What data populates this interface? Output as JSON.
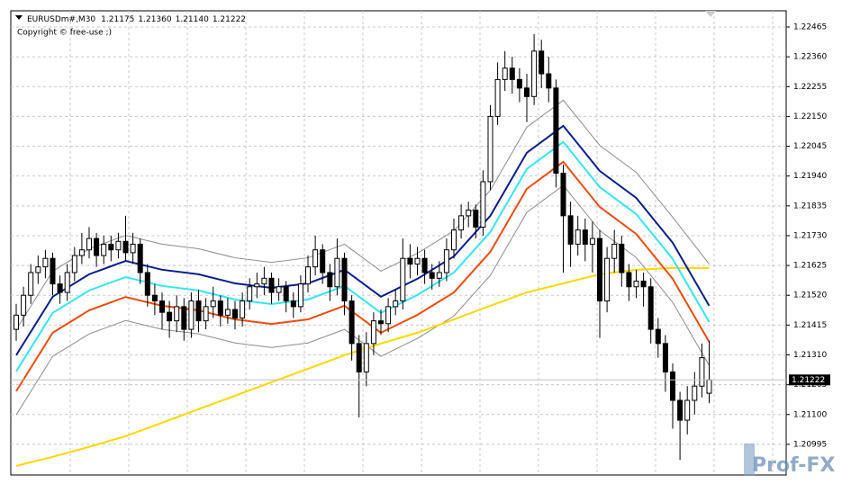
{
  "chart_data": {
    "type": "candlestick",
    "symbol": "EURUSDm#,M30",
    "ohlc_labels": [
      "1.21175",
      "1.21360",
      "1.21140",
      "1.21222"
    ],
    "copyright": "Copyright © free-use ;)",
    "watermark": "Prof-FX",
    "current_price": {
      "value": 1.21222,
      "label": "1.21222"
    },
    "ylim": [
      1.20887,
      1.22522
    ],
    "yticks": [
      {
        "value": 1.22465,
        "label": "1.22465"
      },
      {
        "value": 1.2236,
        "label": "1.22360"
      },
      {
        "value": 1.22255,
        "label": "1.22255"
      },
      {
        "value": 1.2215,
        "label": "1.22150"
      },
      {
        "value": 1.22045,
        "label": "1.22045"
      },
      {
        "value": 1.2194,
        "label": "1.21940"
      },
      {
        "value": 1.21835,
        "label": "1.21835"
      },
      {
        "value": 1.2173,
        "label": "1.21730"
      },
      {
        "value": 1.21625,
        "label": "1.21625"
      },
      {
        "value": 1.2152,
        "label": "1.21520"
      },
      {
        "value": 1.21415,
        "label": "1.21415"
      },
      {
        "value": 1.2131,
        "label": "1.21310"
      },
      {
        "value": 1.21205,
        "label": "1.21205"
      },
      {
        "value": 1.211,
        "label": "1.21100"
      },
      {
        "value": 1.20995,
        "label": "1.20995"
      }
    ],
    "grid": true,
    "bull_color": "#ffffff",
    "bear_color": "#000000",
    "open": [
      1.214,
      1.2145,
      1.2152,
      1.216,
      1.2162,
      1.2165,
      1.2156,
      1.2153,
      1.216,
      1.2166,
      1.2168,
      1.2172,
      1.2166,
      1.217,
      1.2168,
      1.2171,
      1.2167,
      1.217,
      1.216,
      1.2152,
      1.215,
      1.2146,
      1.2143,
      1.2148,
      1.214,
      1.215,
      1.2143,
      1.2148,
      1.215,
      1.2145,
      1.2147,
      1.2144,
      1.215,
      1.2155,
      1.2156,
      1.2158,
      1.2153,
      1.2155,
      1.215,
      1.2148,
      1.2156,
      1.2162,
      1.2168,
      1.216,
      1.2155,
      1.2165,
      1.215,
      1.2135,
      1.2125,
      1.2135,
      1.2143,
      1.2142,
      1.2148,
      1.215,
      1.2165,
      1.2163,
      1.2165,
      1.216,
      1.2158,
      1.216,
      1.2168,
      1.2175,
      1.218,
      1.2182,
      1.2176,
      1.2192,
      1.2215,
      1.2228,
      1.2232,
      1.2228,
      1.2225,
      1.2222,
      1.2238,
      1.223,
      1.2225,
      1.2195,
      1.218,
      1.217,
      1.2175,
      1.217,
      1.2172,
      1.215,
      1.2165,
      1.217,
      1.216,
      1.2155,
      1.2157,
      1.2155,
      1.214,
      1.2135,
      1.2125,
      1.2115,
      1.2108,
      1.2115,
      1.212,
      1.21175
    ],
    "high": [
      1.2149,
      1.2155,
      1.2163,
      1.2166,
      1.2168,
      1.2167,
      1.2159,
      1.2163,
      1.2169,
      1.2174,
      1.2176,
      1.2174,
      1.2173,
      1.2173,
      1.2174,
      1.218,
      1.2174,
      1.2172,
      1.2163,
      1.2156,
      1.2153,
      1.215,
      1.2152,
      1.2151,
      1.2153,
      1.2154,
      1.2151,
      1.2155,
      1.2152,
      1.2151,
      1.215,
      1.2153,
      1.2158,
      1.216,
      1.2162,
      1.216,
      1.2158,
      1.2157,
      1.2153,
      1.2159,
      1.2166,
      1.2173,
      1.217,
      1.2163,
      1.2172,
      1.2167,
      1.2152,
      1.2138,
      1.2139,
      1.2146,
      1.2147,
      1.2151,
      1.2154,
      1.2172,
      1.217,
      1.2169,
      1.2168,
      1.2163,
      1.2164,
      1.2172,
      1.2179,
      1.2184,
      1.2185,
      1.2184,
      1.2196,
      1.2219,
      1.2234,
      1.2238,
      1.2236,
      1.2232,
      1.223,
      1.2244,
      1.2242,
      1.2236,
      1.2228,
      1.2198,
      1.2185,
      1.218,
      1.2179,
      1.2178,
      1.2175,
      1.2169,
      1.2175,
      1.2173,
      1.2163,
      1.2161,
      1.216,
      1.2158,
      1.2144,
      1.2138,
      1.2128,
      1.2118,
      1.212,
      1.2125,
      1.2135,
      1.2136
    ],
    "low": [
      1.2136,
      1.2141,
      1.2149,
      1.2156,
      1.2158,
      1.2152,
      1.2149,
      1.215,
      1.2157,
      1.2163,
      1.2165,
      1.2162,
      1.2163,
      1.2164,
      1.2165,
      1.2164,
      1.2163,
      1.2156,
      1.2148,
      1.2145,
      1.214,
      1.2137,
      1.2139,
      1.2136,
      1.2137,
      1.2139,
      1.214,
      1.2144,
      1.2141,
      1.2142,
      1.214,
      1.2141,
      1.2147,
      1.2151,
      1.2152,
      1.2149,
      1.215,
      1.2146,
      1.2144,
      1.2146,
      1.2153,
      1.2159,
      1.2156,
      1.215,
      1.2152,
      1.2145,
      1.2129,
      1.2109,
      1.212,
      1.2131,
      1.2138,
      1.2139,
      1.2145,
      1.2147,
      1.2158,
      1.2159,
      1.2156,
      1.2154,
      1.2155,
      1.2157,
      1.2165,
      1.2172,
      1.2176,
      1.2172,
      1.2173,
      1.2189,
      1.2212,
      1.2224,
      1.2223,
      1.222,
      1.2213,
      1.2219,
      1.2225,
      1.222,
      1.219,
      1.216,
      1.2162,
      1.2166,
      1.2164,
      1.216,
      1.2137,
      1.2146,
      1.216,
      1.2155,
      1.215,
      1.2151,
      1.2148,
      1.2135,
      1.213,
      1.2118,
      1.2105,
      1.2094,
      1.2103,
      1.211,
      1.2116,
      1.2114
    ],
    "close": [
      1.2145,
      1.2152,
      1.216,
      1.2162,
      1.2165,
      1.2156,
      1.2153,
      1.216,
      1.2166,
      1.2168,
      1.2172,
      1.2166,
      1.217,
      1.2168,
      1.2171,
      1.2167,
      1.217,
      1.216,
      1.2152,
      1.215,
      1.2146,
      1.2143,
      1.2148,
      1.214,
      1.215,
      1.2143,
      1.2148,
      1.215,
      1.2145,
      1.2147,
      1.2144,
      1.215,
      1.2155,
      1.2156,
      1.2158,
      1.2153,
      1.2155,
      1.215,
      1.2148,
      1.2156,
      1.2162,
      1.2168,
      1.216,
      1.2155,
      1.2165,
      1.215,
      1.2135,
      1.2125,
      1.2135,
      1.2143,
      1.2142,
      1.2148,
      1.215,
      1.2165,
      1.2163,
      1.2165,
      1.216,
      1.2158,
      1.216,
      1.2168,
      1.2175,
      1.218,
      1.2182,
      1.2176,
      1.2192,
      1.2215,
      1.2228,
      1.2232,
      1.2228,
      1.2225,
      1.2222,
      1.2238,
      1.223,
      1.2225,
      1.2195,
      1.218,
      1.217,
      1.2175,
      1.217,
      1.2172,
      1.215,
      1.2165,
      1.217,
      1.216,
      1.2155,
      1.2157,
      1.2155,
      1.214,
      1.2135,
      1.2125,
      1.2115,
      1.2108,
      1.2115,
      1.212,
      1.213,
      1.21222
    ],
    "line_x": [
      0,
      5,
      10,
      15,
      20,
      25,
      30,
      35,
      40,
      45,
      50,
      55,
      60,
      65,
      70,
      75,
      80,
      85,
      90,
      95
    ],
    "lines": [
      {
        "color": "#8c8c8c",
        "values": [
          1.21399,
          1.21605,
          1.21684,
          1.21731,
          1.217,
          1.21684,
          1.21652,
          1.21636,
          1.21652,
          1.217,
          1.21605,
          1.21668,
          1.21747,
          1.2189,
          1.22112,
          1.22207,
          1.22048,
          1.21953,
          1.21795,
          1.2163
        ]
      },
      {
        "color": "#8c8c8c",
        "values": [
          1.21099,
          1.21305,
          1.21384,
          1.21431,
          1.214,
          1.21384,
          1.21352,
          1.21336,
          1.21352,
          1.214,
          1.21305,
          1.21368,
          1.21447,
          1.2159,
          1.21812,
          1.21907,
          1.21748,
          1.21653,
          1.21495,
          1.21273
        ]
      },
      {
        "color": "#ffd700",
        "values": [
          1.20919,
          1.20951,
          1.20986,
          1.21024,
          1.21071,
          1.21119,
          1.21166,
          1.21214,
          1.21261,
          1.21309,
          1.2135,
          1.21388,
          1.21435,
          1.21483,
          1.2153,
          1.21562,
          1.21594,
          1.2161,
          1.21616,
          1.21616
        ]
      },
      {
        "color": "#ee4b0c",
        "values": [
          1.21182,
          1.21388,
          1.21467,
          1.21514,
          1.21483,
          1.21467,
          1.21435,
          1.21419,
          1.21435,
          1.21483,
          1.21388,
          1.21451,
          1.2153,
          1.21673,
          1.21895,
          1.2199,
          1.21831,
          1.21736,
          1.21578,
          1.21356
        ]
      },
      {
        "color": "#33e6f0",
        "values": [
          1.21252,
          1.21458,
          1.21537,
          1.21584,
          1.21553,
          1.21537,
          1.21505,
          1.21489,
          1.21505,
          1.21553,
          1.21458,
          1.21521,
          1.216,
          1.21743,
          1.21965,
          1.2206,
          1.21901,
          1.21806,
          1.21648,
          1.21426
        ]
      },
      {
        "color": "#0a1e8c",
        "values": [
          1.21309,
          1.21515,
          1.21594,
          1.21641,
          1.2161,
          1.21594,
          1.21562,
          1.21546,
          1.21562,
          1.2161,
          1.21515,
          1.21578,
          1.21657,
          1.218,
          1.22022,
          1.22117,
          1.21958,
          1.21863,
          1.21705,
          1.21483
        ]
      }
    ]
  }
}
